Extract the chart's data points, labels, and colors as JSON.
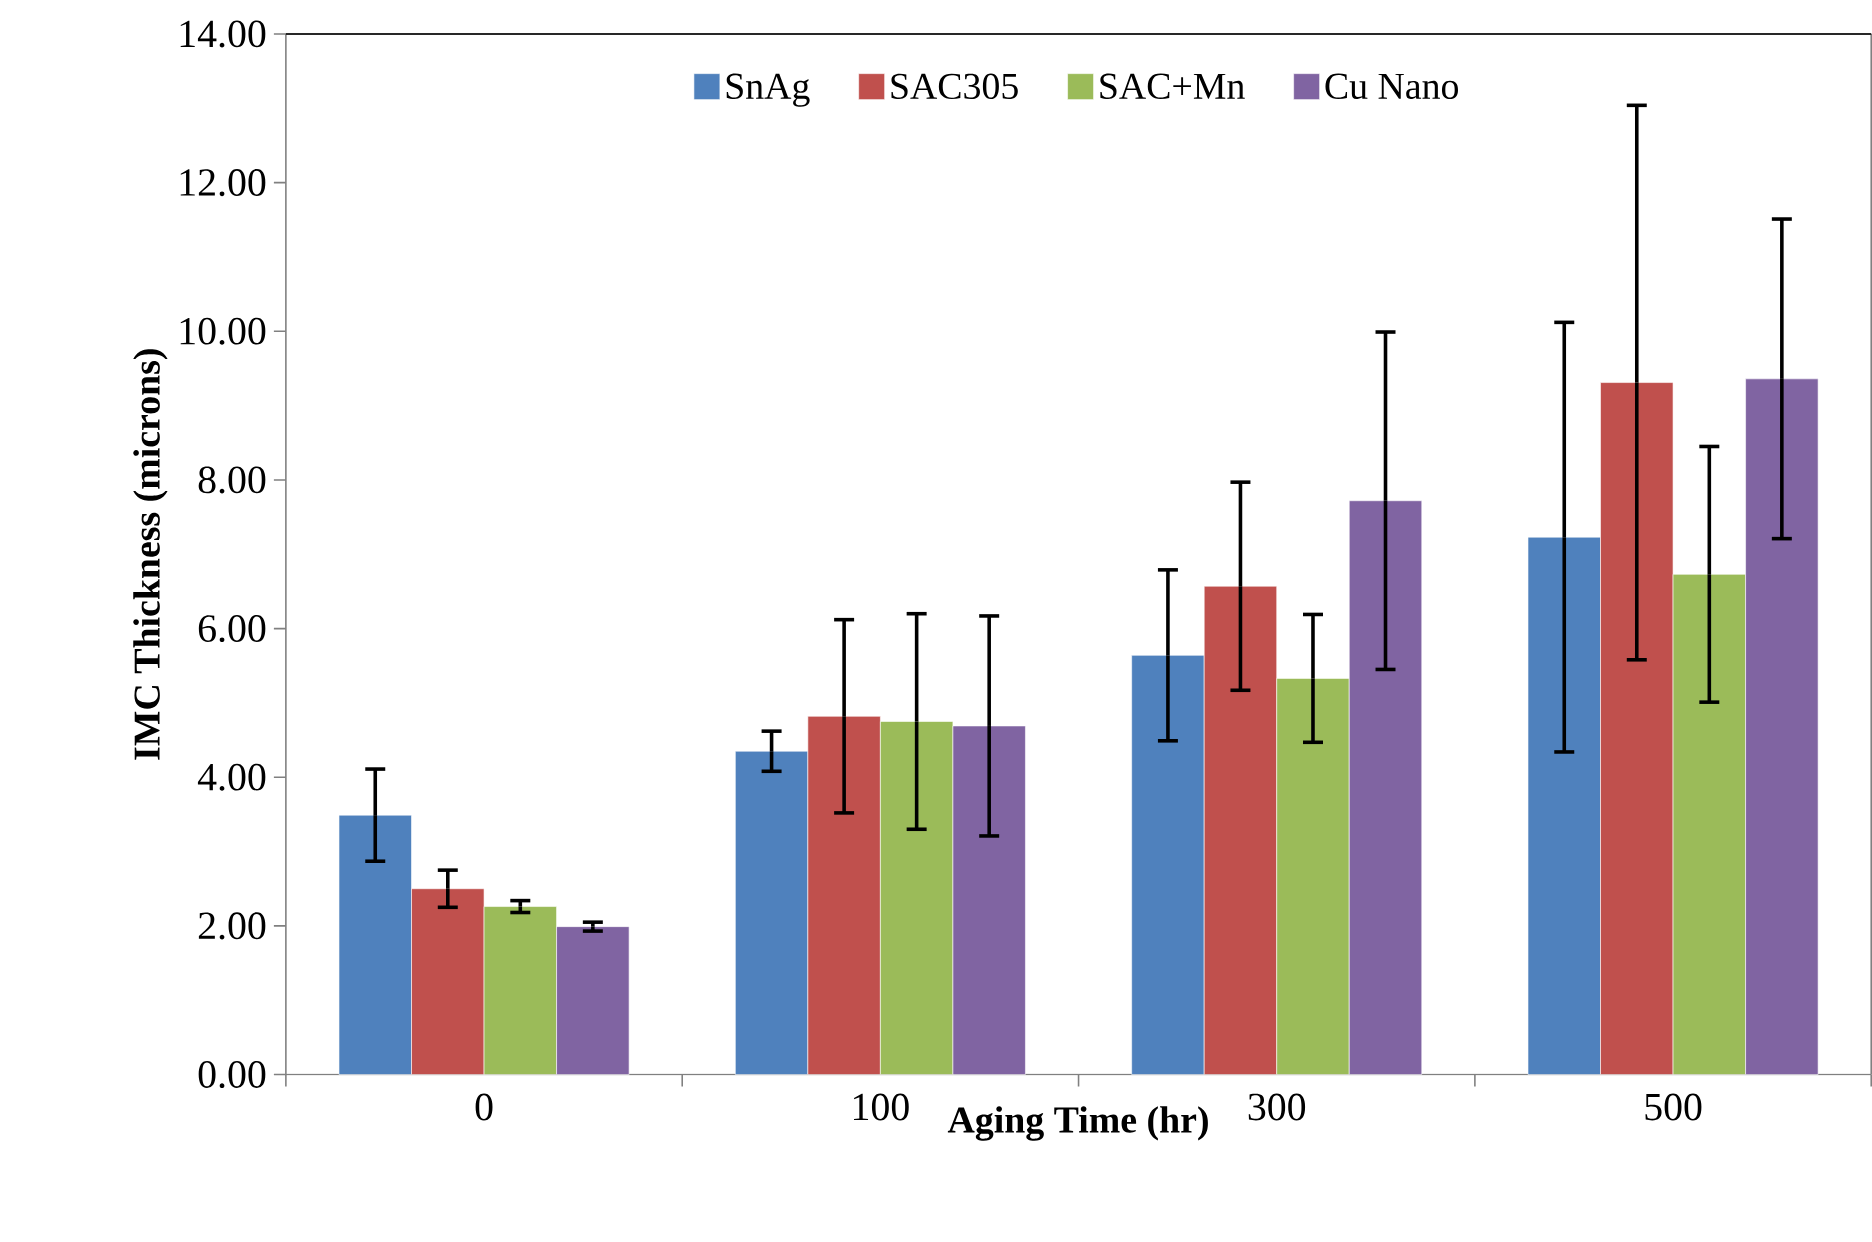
{
  "chart_data": {
    "type": "bar",
    "xlabel": "Aging Time (hr)",
    "ylabel": "IMC Thickness (microns)",
    "categories": [
      "0",
      "100",
      "300",
      "500"
    ],
    "series": [
      {
        "name": "SnAg",
        "color": "#4f81bd",
        "values": [
          3.49,
          4.35,
          5.64,
          7.23
        ],
        "errors": [
          0.62,
          0.27,
          1.15,
          2.89
        ]
      },
      {
        "name": "SAC305",
        "color": "#c0504d",
        "values": [
          2.5,
          4.82,
          6.57,
          9.31
        ],
        "errors": [
          0.25,
          1.3,
          1.4,
          3.73
        ]
      },
      {
        "name": "SAC+Mn",
        "color": "#9bbb59",
        "values": [
          2.26,
          4.75,
          5.33,
          6.73
        ],
        "errors": [
          0.08,
          1.45,
          0.86,
          1.72
        ]
      },
      {
        "name": "Cu Nano",
        "color": "#8064a2",
        "values": [
          1.99,
          4.69,
          7.72,
          9.36
        ],
        "errors": [
          0.06,
          1.48,
          2.27,
          2.15
        ]
      }
    ],
    "ylim": [
      0,
      14
    ],
    "yticks": [
      {
        "value": 0,
        "label": "0.00"
      },
      {
        "value": 2,
        "label": "2.00"
      },
      {
        "value": 4,
        "label": "4.00"
      },
      {
        "value": 6,
        "label": "6.00"
      },
      {
        "value": 8,
        "label": "8.00"
      },
      {
        "value": 10,
        "label": "10.00"
      },
      {
        "value": 12,
        "label": "12.00"
      },
      {
        "value": 14,
        "label": "14.00"
      }
    ],
    "legend": "top"
  }
}
